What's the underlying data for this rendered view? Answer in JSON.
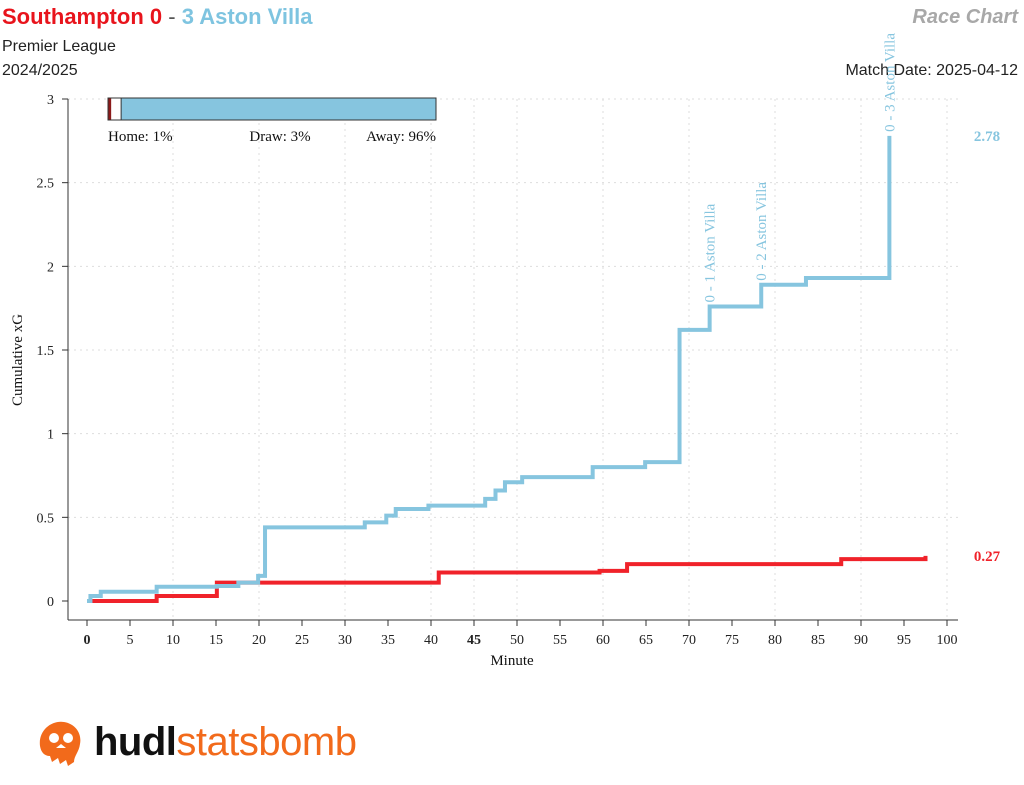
{
  "header": {
    "home_part": "Southampton 0",
    "separator": "-",
    "away_part": "3 Aston Villa",
    "race_label": "Race Chart",
    "competition": "Premier League",
    "season": "2024/2025",
    "match_date": "Match Date: 2025-04-12"
  },
  "logo": {
    "hudl": "hudl",
    "statsbomb": "statsbomb"
  },
  "colors": {
    "home": "#f0222a",
    "away": "#86c5df",
    "win_home": "#8b1a1a",
    "draw": "#ffffff"
  },
  "chart_data": {
    "type": "line",
    "xlabel": "Minute",
    "ylabel": "Cumulative xG",
    "xlim": [
      0,
      100
    ],
    "ylim": [
      0,
      3
    ],
    "x_ticks": [
      0,
      5,
      10,
      15,
      20,
      25,
      30,
      35,
      40,
      45,
      50,
      55,
      60,
      65,
      70,
      75,
      80,
      85,
      90,
      95,
      100
    ],
    "x_tick_labels": [
      "0",
      "5",
      "10",
      "15",
      "20",
      "25",
      "30",
      "35",
      "40",
      "45",
      "50",
      "55",
      "60",
      "65",
      "70",
      "75",
      "80",
      "85",
      "90",
      "95",
      "100"
    ],
    "y_ticks": [
      0,
      0.5,
      1,
      1.5,
      2,
      2.5,
      3
    ],
    "y_tick_labels": [
      "0",
      "0.5",
      "1",
      "1.5",
      "2",
      "2.5",
      "3"
    ],
    "grid": "dotted",
    "series": [
      {
        "team": "Southampton",
        "side": "home",
        "steps": [
          [
            0,
            0
          ],
          [
            8.1,
            0.03
          ],
          [
            15.1,
            0.11
          ],
          [
            40.9,
            0.17
          ],
          [
            59.6,
            0.18
          ],
          [
            62.8,
            0.22
          ],
          [
            87.7,
            0.25
          ],
          [
            97.5,
            0.27
          ]
        ],
        "end_x": 97.5,
        "final_label": "0.27"
      },
      {
        "team": "Aston Villa",
        "side": "away",
        "steps": [
          [
            0,
            0
          ],
          [
            0.4,
            0.03
          ],
          [
            1.6,
            0.055
          ],
          [
            8.1,
            0.085
          ],
          [
            15.1,
            0.09
          ],
          [
            17.6,
            0.11
          ],
          [
            19.9,
            0.15
          ],
          [
            20.7,
            0.44
          ],
          [
            32.3,
            0.47
          ],
          [
            34.8,
            0.51
          ],
          [
            35.9,
            0.55
          ],
          [
            39.7,
            0.57
          ],
          [
            46.3,
            0.61
          ],
          [
            47.5,
            0.66
          ],
          [
            48.6,
            0.71
          ],
          [
            50.6,
            0.74
          ],
          [
            58.8,
            0.8
          ],
          [
            64.9,
            0.83
          ],
          [
            68.9,
            1.62
          ],
          [
            72.4,
            1.76
          ],
          [
            78.4,
            1.89
          ],
          [
            83.6,
            1.93
          ],
          [
            93.3,
            2.78
          ]
        ],
        "end_x": 93.3,
        "final_label": "2.78"
      }
    ],
    "goal_annotations": [
      {
        "minute": 72.4,
        "text": "0 - 1 Aston Villa"
      },
      {
        "minute": 78.4,
        "text": "0 - 2 Aston Villa"
      },
      {
        "minute": 93.3,
        "text": "0 - 3 Aston Villa"
      }
    ],
    "win_probability": {
      "home": 1,
      "draw": 3,
      "away": 96,
      "home_label": "Home: 1%",
      "draw_label": "Draw: 3%",
      "away_label": "Away: 96%"
    }
  }
}
